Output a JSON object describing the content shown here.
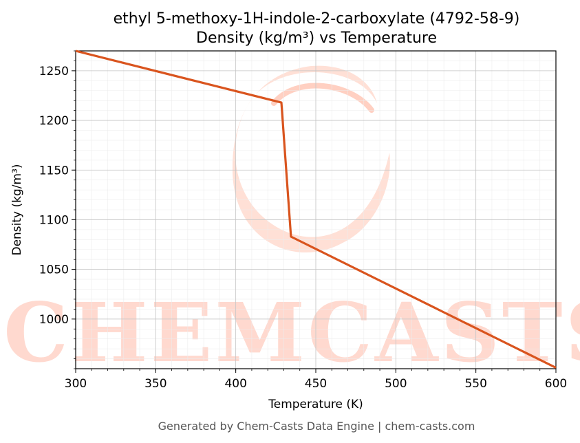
{
  "chart_data": {
    "type": "line",
    "title": "ethyl 5-methoxy-1H-indole-2-carboxylate (4792-58-9)",
    "subtitle": "Density (kg/m³) vs Temperature",
    "xlabel": "Temperature (K)",
    "ylabel": "Density (kg/m³)",
    "xlim": [
      300,
      600
    ],
    "ylim": [
      950,
      1270
    ],
    "xticks": [
      300,
      350,
      400,
      450,
      500,
      550,
      600
    ],
    "yticks": [
      1000,
      1050,
      1100,
      1150,
      1200,
      1250
    ],
    "grid": true,
    "legend": "none",
    "series": [
      {
        "color": "#d9541e",
        "x": [
          300,
          428.5,
          434.5,
          600
        ],
        "y": [
          1270,
          1218,
          1083,
          951
        ]
      }
    ]
  },
  "watermark": {
    "text": "CHEMCASTS",
    "color": "#ffd9cf"
  },
  "footer": "Generated by Chem-Casts Data Engine | chem-casts.com"
}
